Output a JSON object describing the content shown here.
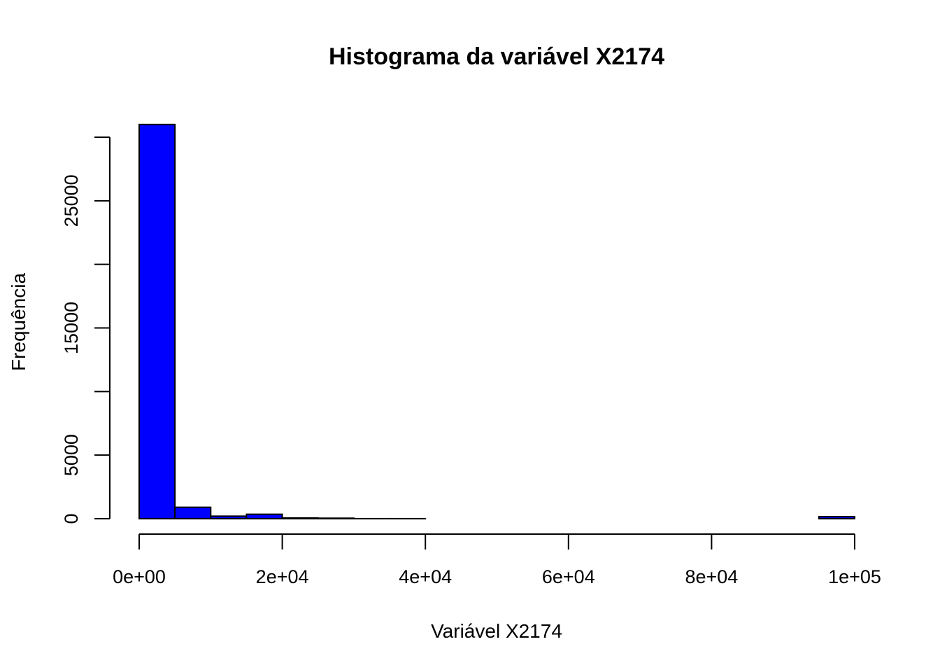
{
  "chart_data": {
    "type": "histogram",
    "title": "Histograma da variável X2174",
    "xlabel": "Variável X2174",
    "ylabel": "Frequência",
    "bar_color": "#0000ff",
    "bin_width": 5000,
    "bins": [
      {
        "start": 0,
        "end": 5000,
        "count": 31000
      },
      {
        "start": 5000,
        "end": 10000,
        "count": 900
      },
      {
        "start": 10000,
        "end": 15000,
        "count": 200
      },
      {
        "start": 15000,
        "end": 20000,
        "count": 350
      },
      {
        "start": 20000,
        "end": 25000,
        "count": 60
      },
      {
        "start": 25000,
        "end": 30000,
        "count": 40
      },
      {
        "start": 30000,
        "end": 35000,
        "count": 5
      },
      {
        "start": 35000,
        "end": 40000,
        "count": 5
      },
      {
        "start": 40000,
        "end": 45000,
        "count": 0
      },
      {
        "start": 45000,
        "end": 50000,
        "count": 0
      },
      {
        "start": 50000,
        "end": 55000,
        "count": 0
      },
      {
        "start": 55000,
        "end": 60000,
        "count": 0
      },
      {
        "start": 60000,
        "end": 65000,
        "count": 0
      },
      {
        "start": 65000,
        "end": 70000,
        "count": 0
      },
      {
        "start": 70000,
        "end": 75000,
        "count": 0
      },
      {
        "start": 75000,
        "end": 80000,
        "count": 0
      },
      {
        "start": 80000,
        "end": 85000,
        "count": 0
      },
      {
        "start": 85000,
        "end": 90000,
        "count": 0
      },
      {
        "start": 90000,
        "end": 95000,
        "count": 0
      },
      {
        "start": 95000,
        "end": 100000,
        "count": 160
      }
    ],
    "xlim": [
      0,
      100000
    ],
    "ylim": [
      0,
      30000
    ],
    "x_ticks": [
      {
        "value": 0,
        "label": "0e+00"
      },
      {
        "value": 20000,
        "label": "2e+04"
      },
      {
        "value": 40000,
        "label": "4e+04"
      },
      {
        "value": 60000,
        "label": "6e+04"
      },
      {
        "value": 80000,
        "label": "8e+04"
      },
      {
        "value": 100000,
        "label": "1e+05"
      }
    ],
    "y_ticks": [
      {
        "value": 0,
        "label": "0"
      },
      {
        "value": 5000,
        "label": "5000"
      },
      {
        "value": 10000,
        "label": ""
      },
      {
        "value": 15000,
        "label": "15000"
      },
      {
        "value": 20000,
        "label": ""
      },
      {
        "value": 25000,
        "label": "25000"
      },
      {
        "value": 30000,
        "label": ""
      }
    ],
    "grid": false,
    "legend": "none"
  }
}
